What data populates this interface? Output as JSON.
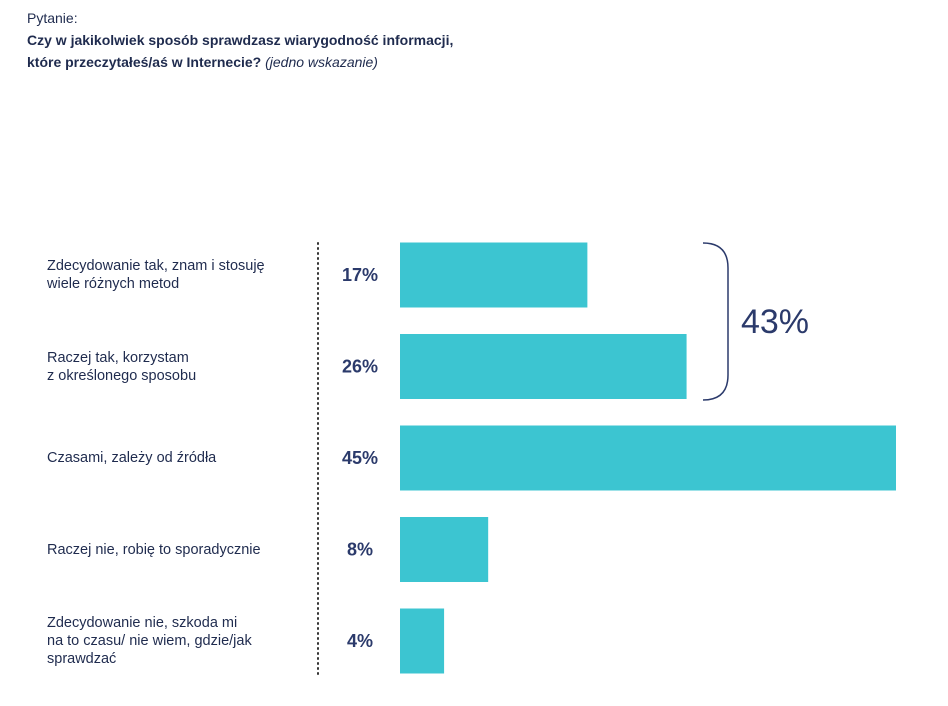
{
  "chart_data": {
    "type": "bar",
    "orientation": "horizontal",
    "label": "Pytanie:",
    "title": "Czy w jakikolwiek sposób sprawdzasz wiarygodność informacji,\nktóre przeczytałeś/aś w Internecie?",
    "subtitle": "(jedno wskazanie)",
    "categories": [
      "Zdecydowanie tak, znam i stosuję\nwiele różnych metod",
      "Raczej tak, korzystam\nz określonego sposobu",
      "Czasami, zależy od źródła",
      "Raczej nie, robię to sporadycznie",
      "Zdecydowanie nie, szkoda mi\nna to czasu/ nie wiem, gdzie/jak\nsprawdzać"
    ],
    "values": [
      17,
      26,
      45,
      8,
      4
    ],
    "value_labels": [
      "17%",
      "26%",
      "45%",
      "8%",
      "4%"
    ],
    "color": "#3cc5d1",
    "bracket_label": "43%"
  }
}
